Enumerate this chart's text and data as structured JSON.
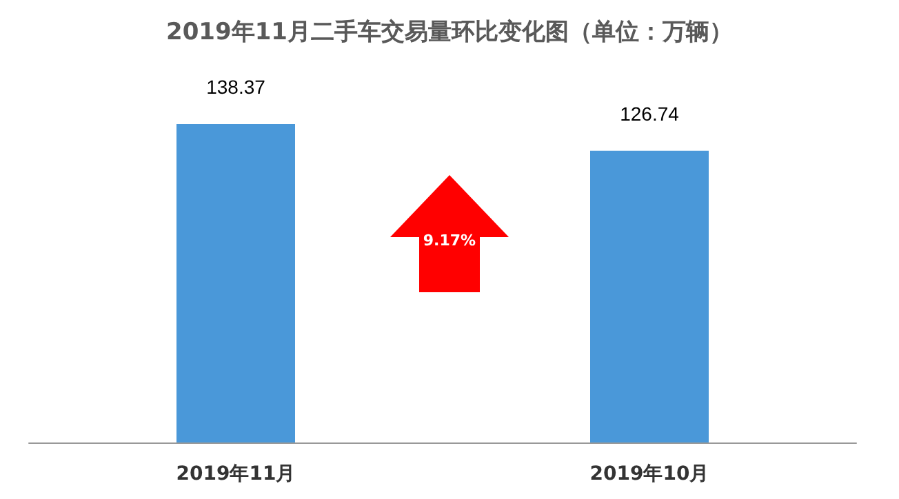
{
  "chart_data": {
    "type": "bar",
    "title": "2019年11月二手车交易量环比变化图（单位：万辆）",
    "categories": [
      "2019年11月",
      "2019年10月"
    ],
    "values": [
      138.37,
      126.74
    ],
    "color": "#4a98d9",
    "tick_labels": "x",
    "data_labels": true,
    "annotations": [
      "9.17%"
    ]
  }
}
